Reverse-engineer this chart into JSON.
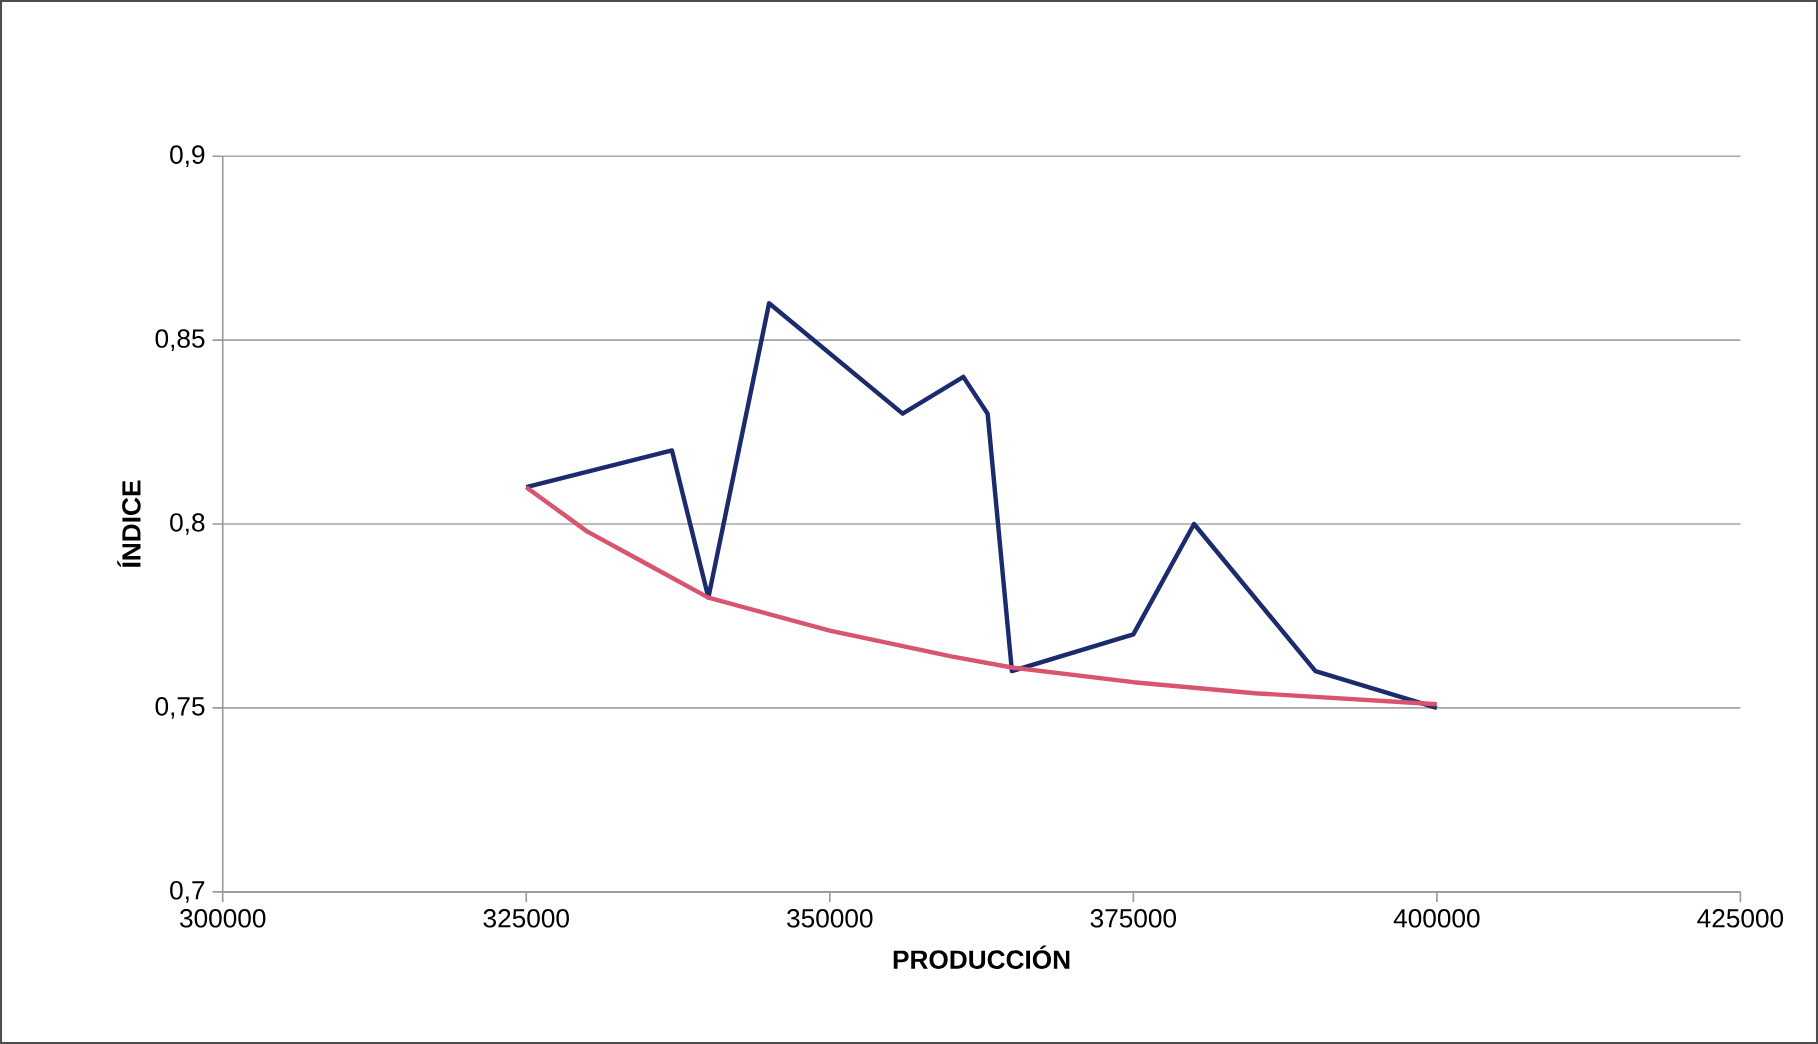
{
  "chart_data": {
    "type": "line",
    "xlabel": "PRODUCCIÓN",
    "ylabel": "ÍNDICE",
    "series": [
      {
        "color": "#1c2a6e",
        "x": [
          325000,
          337000,
          340000,
          345000,
          356000,
          361000,
          363000,
          365000,
          375000,
          380000,
          390000,
          400000
        ],
        "values": [
          0.81,
          0.82,
          0.78,
          0.86,
          0.83,
          0.84,
          0.83,
          0.76,
          0.77,
          0.8,
          0.76,
          0.75
        ]
      },
      {
        "color": "#d9546e",
        "x": [
          325000,
          330000,
          335000,
          340000,
          350000,
          360000,
          365000,
          375000,
          385000,
          400000
        ],
        "values": [
          0.81,
          0.798,
          0.789,
          0.78,
          0.771,
          0.764,
          0.761,
          0.757,
          0.754,
          0.751
        ]
      }
    ],
    "xlim": [
      300000,
      425000
    ],
    "xticks": [
      300000,
      325000,
      350000,
      375000,
      400000,
      425000
    ],
    "ylim": [
      0.7,
      0.9
    ],
    "yticks": [
      {
        "value": 0.7,
        "label": "0,7"
      },
      {
        "value": 0.75,
        "label": "0,75"
      },
      {
        "value": 0.8,
        "label": "0,8"
      },
      {
        "value": 0.85,
        "label": "0,85"
      },
      {
        "value": 0.9,
        "label": "0,9"
      }
    ],
    "grid": "y",
    "legend": false,
    "marker": "none",
    "line_style": "solid"
  }
}
